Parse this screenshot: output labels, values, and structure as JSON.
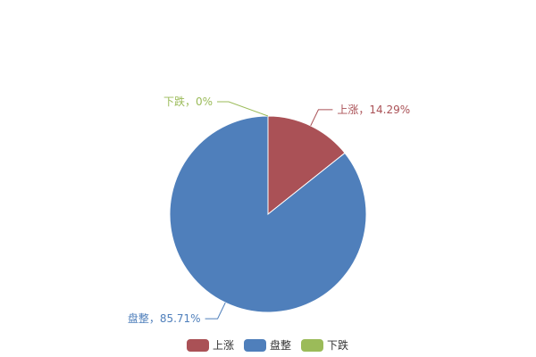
{
  "chart_data": {
    "type": "pie",
    "title": "",
    "slices": [
      {
        "name": "上涨",
        "value": 14.29,
        "label": "上涨，14.29%",
        "color": "#AA5156"
      },
      {
        "name": "盘整",
        "value": 85.71,
        "label": "盘整，85.71%",
        "color": "#4F7FBB"
      },
      {
        "name": "下跌",
        "value": 0,
        "label": "下跌，0%",
        "color": "#9BBB59"
      }
    ],
    "legend": {
      "placement": "bottom",
      "items": [
        "上涨",
        "盘整",
        "下跌"
      ]
    }
  }
}
